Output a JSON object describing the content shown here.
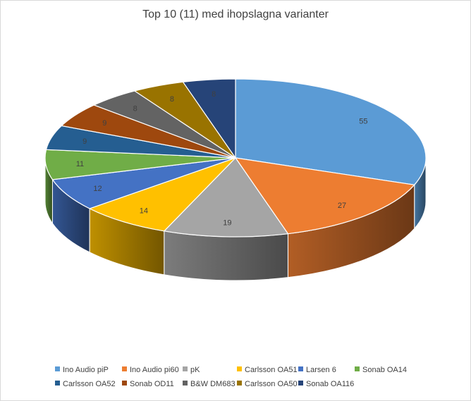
{
  "chart_data": {
    "type": "pie",
    "title": "Top 10 (11) med ihopslagna varianter",
    "three_d": true,
    "start_angle": "top, clockwise",
    "show_data_labels": true,
    "legend_position": "bottom",
    "labels": [
      "Ino Audio piP",
      "Ino Audio pi60",
      "pK",
      "Carlsson OA51",
      "Larsen 6",
      "Sonab OA14",
      "Carlsson OA52",
      "Sonab OD11",
      "B&W DM683",
      "Carlsson OA50",
      "Sonab OA116"
    ],
    "values": [
      55,
      27,
      19,
      14,
      12,
      11,
      9,
      9,
      8,
      8,
      8
    ],
    "colors": [
      "#5b9bd5",
      "#ed7d31",
      "#a5a5a5",
      "#ffc000",
      "#4472c4",
      "#70ad47",
      "#255e91",
      "#9e480e",
      "#636363",
      "#997300",
      "#264478"
    ]
  }
}
